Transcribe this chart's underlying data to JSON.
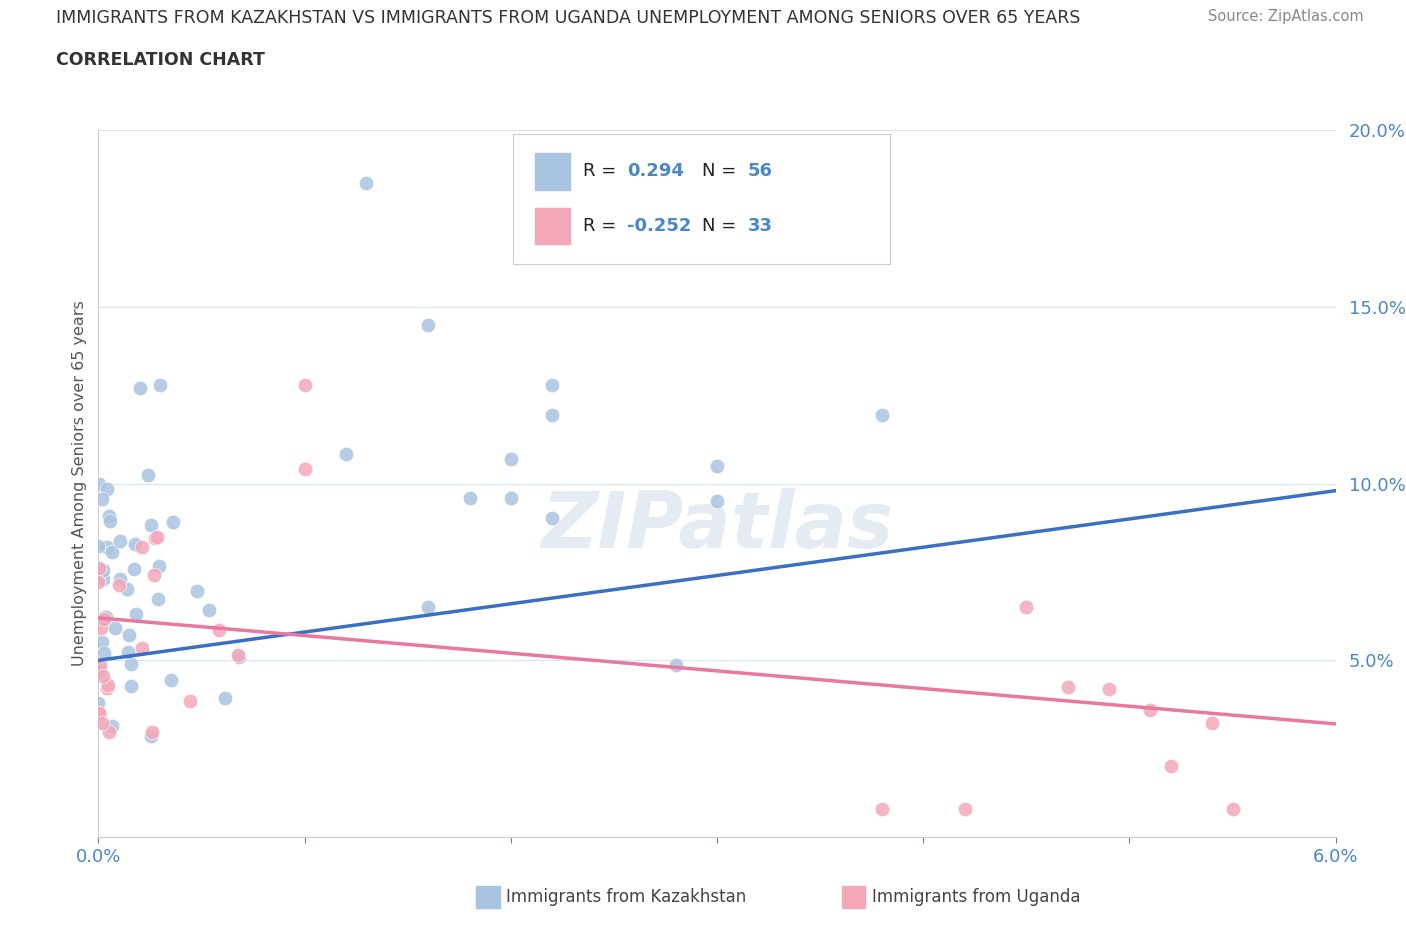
{
  "title_line1": "IMMIGRANTS FROM KAZAKHSTAN VS IMMIGRANTS FROM UGANDA UNEMPLOYMENT AMONG SENIORS OVER 65 YEARS",
  "title_line2": "CORRELATION CHART",
  "source": "Source: ZipAtlas.com",
  "ylabel": "Unemployment Among Seniors over 65 years",
  "xlim": [
    0.0,
    0.06
  ],
  "ylim": [
    0.0,
    0.2
  ],
  "xticks": [
    0.0,
    0.01,
    0.02,
    0.03,
    0.04,
    0.05,
    0.06
  ],
  "xticklabels": [
    "0.0%",
    "",
    "",
    "",
    "",
    "",
    "6.0%"
  ],
  "yticks": [
    0.0,
    0.05,
    0.1,
    0.15,
    0.2
  ],
  "yticklabels": [
    "",
    "5.0%",
    "10.0%",
    "15.0%",
    "20.0%"
  ],
  "kaz_R": 0.294,
  "kaz_N": 56,
  "uga_R": -0.252,
  "uga_N": 33,
  "kaz_color": "#a8c4e0",
  "uga_color": "#f4a7b9",
  "kaz_line_color": "#3a6fc4",
  "uga_line_color": "#e878a0",
  "kaz_dash_color": "#b0c8e0",
  "watermark": "ZIPatlas",
  "legend_label_kaz": "Immigrants from Kazakhstan",
  "legend_label_uga": "Immigrants from Uganda",
  "kaz_line_x0": 0.0,
  "kaz_line_y0": 0.05,
  "kaz_line_x1": 0.06,
  "kaz_line_y1": 0.098,
  "uga_line_x0": 0.0,
  "uga_line_y0": 0.062,
  "uga_line_x1": 0.06,
  "uga_line_y1": 0.032
}
